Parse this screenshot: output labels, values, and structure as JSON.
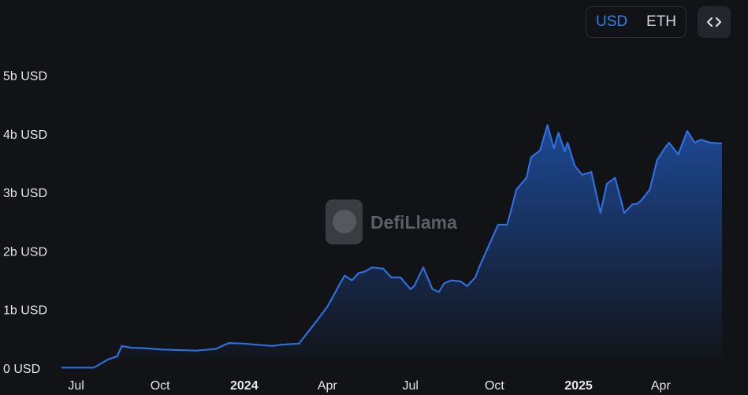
{
  "toolbar": {
    "currency_options": [
      "USD",
      "ETH"
    ],
    "selected_currency": "USD",
    "embed_icon": "code-brackets-icon"
  },
  "watermark": {
    "text": "DefiLlama"
  },
  "colors": {
    "line": "#2f6fdd",
    "area_top": "#1e4c9c",
    "area_bottom": "#121316",
    "accent": "#2f80ed"
  },
  "chart_data": {
    "type": "area",
    "ylim": [
      0,
      5
    ],
    "y_ticks": [
      "0 USD",
      "1b USD",
      "2b USD",
      "3b USD",
      "4b USD",
      "5b USD"
    ],
    "xlim": [
      "2023-06-15",
      "2025-06-07"
    ],
    "x_ticks": [
      {
        "date": "2023-07-01",
        "label": "Jul",
        "bold": false
      },
      {
        "date": "2023-10-01",
        "label": "Oct",
        "bold": false
      },
      {
        "date": "2024-01-01",
        "label": "2024",
        "bold": true
      },
      {
        "date": "2024-04-01",
        "label": "Apr",
        "bold": false
      },
      {
        "date": "2024-07-01",
        "label": "Jul",
        "bold": false
      },
      {
        "date": "2024-10-01",
        "label": "Oct",
        "bold": false
      },
      {
        "date": "2025-01-01",
        "label": "2025",
        "bold": true
      },
      {
        "date": "2025-04-01",
        "label": "Apr",
        "bold": false
      }
    ],
    "series": [
      {
        "x": [
          "2023-06-15",
          "2023-07-01",
          "2023-07-20",
          "2023-07-25",
          "2023-08-05",
          "2023-08-15",
          "2023-08-20",
          "2023-08-30",
          "2023-09-15",
          "2023-10-01",
          "2023-10-20",
          "2023-11-10",
          "2023-12-01",
          "2023-12-15",
          "2024-01-01",
          "2024-01-15",
          "2024-02-01",
          "2024-02-10",
          "2024-02-20",
          "2024-03-01",
          "2024-03-10",
          "2024-03-20",
          "2024-04-01",
          "2024-04-10",
          "2024-04-15",
          "2024-04-20",
          "2024-04-28",
          "2024-05-05",
          "2024-05-12",
          "2024-05-20",
          "2024-06-01",
          "2024-06-10",
          "2024-06-20",
          "2024-07-01",
          "2024-07-05",
          "2024-07-15",
          "2024-07-25",
          "2024-08-01",
          "2024-08-07",
          "2024-08-15",
          "2024-08-25",
          "2024-09-01",
          "2024-09-10",
          "2024-09-15",
          "2024-09-25",
          "2024-10-05",
          "2024-10-15",
          "2024-10-25",
          "2024-11-05",
          "2024-11-10",
          "2024-11-20",
          "2024-11-28",
          "2024-12-05",
          "2024-12-10",
          "2024-12-17",
          "2024-12-20",
          "2024-12-28",
          "2025-01-05",
          "2025-01-15",
          "2025-01-25",
          "2025-02-01",
          "2025-02-10",
          "2025-02-20",
          "2025-03-01",
          "2025-03-05",
          "2025-03-10",
          "2025-03-20",
          "2025-03-28",
          "2025-04-05",
          "2025-04-10",
          "2025-04-20",
          "2025-04-30",
          "2025-05-08",
          "2025-05-15",
          "2025-05-25",
          "2025-06-01",
          "2025-06-07"
        ],
        "values": [
          0.01,
          0.01,
          0.01,
          0.05,
          0.15,
          0.2,
          0.38,
          0.35,
          0.34,
          0.32,
          0.31,
          0.3,
          0.33,
          0.43,
          0.42,
          0.4,
          0.38,
          0.4,
          0.41,
          0.42,
          0.6,
          0.8,
          1.05,
          1.3,
          1.45,
          1.58,
          1.5,
          1.62,
          1.65,
          1.72,
          1.7,
          1.55,
          1.55,
          1.35,
          1.4,
          1.72,
          1.35,
          1.3,
          1.45,
          1.5,
          1.48,
          1.4,
          1.55,
          1.75,
          2.1,
          2.45,
          2.45,
          3.05,
          3.25,
          3.6,
          3.72,
          4.15,
          3.75,
          4.02,
          3.7,
          3.85,
          3.45,
          3.3,
          3.35,
          2.65,
          3.15,
          3.25,
          2.65,
          2.8,
          2.8,
          2.85,
          3.05,
          3.55,
          3.75,
          3.85,
          3.65,
          4.05,
          3.85,
          3.9,
          3.85,
          3.84,
          3.84
        ]
      }
    ]
  }
}
